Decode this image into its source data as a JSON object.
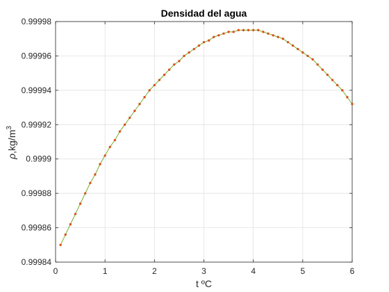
{
  "chart_data": {
    "type": "line",
    "title": "Densidad del agua",
    "xlabel": "t ºC",
    "ylabel": {
      "symbol": "ρ",
      "unit": ",kg/m",
      "exponent": "3"
    },
    "xlim": [
      0,
      6
    ],
    "ylim": [
      0.99984,
      0.99998
    ],
    "xticks": [
      0,
      1,
      2,
      3,
      4,
      5,
      6
    ],
    "xtick_labels": [
      "0",
      "1",
      "2",
      "3",
      "4",
      "5",
      "6"
    ],
    "yticks": [
      0.99984,
      0.99986,
      0.99988,
      0.9999,
      0.99992,
      0.99994,
      0.99996,
      0.99998
    ],
    "ytick_labels": [
      "0.99984",
      "0.99986",
      "0.99988",
      "0.9999",
      "0.99992",
      "0.99994",
      "0.99996",
      "0.99998"
    ],
    "grid": true,
    "series": [
      {
        "line_color": "#77ac30",
        "marker_color": "#d95319",
        "x": [
          0.1,
          0.2,
          0.3,
          0.4,
          0.5,
          0.6,
          0.7,
          0.8,
          0.9,
          1.0,
          1.1,
          1.2,
          1.3,
          1.4,
          1.5,
          1.6,
          1.7,
          1.8,
          1.9,
          2.0,
          2.1,
          2.2,
          2.3,
          2.4,
          2.5,
          2.6,
          2.7,
          2.8,
          2.9,
          3.0,
          3.1,
          3.2,
          3.3,
          3.4,
          3.5,
          3.6,
          3.7,
          3.8,
          3.9,
          4.0,
          4.1,
          4.2,
          4.3,
          4.4,
          4.5,
          4.6,
          4.7,
          4.8,
          4.9,
          5.0,
          5.1,
          5.2,
          5.3,
          5.4,
          5.5,
          5.6,
          5.7,
          5.8,
          5.9,
          6.0
        ],
        "y": [
          0.99985,
          0.999856,
          0.999862,
          0.999868,
          0.999874,
          0.99988,
          0.999886,
          0.999891,
          0.999897,
          0.999902,
          0.999907,
          0.999911,
          0.999916,
          0.99992,
          0.999924,
          0.999928,
          0.999932,
          0.999936,
          0.99994,
          0.999943,
          0.999946,
          0.999949,
          0.999952,
          0.999955,
          0.999957,
          0.99996,
          0.999962,
          0.999964,
          0.999966,
          0.999968,
          0.999969,
          0.999971,
          0.999972,
          0.999973,
          0.999974,
          0.999974,
          0.999975,
          0.999975,
          0.999975,
          0.999975,
          0.999975,
          0.999974,
          0.999973,
          0.999972,
          0.999971,
          0.99997,
          0.999968,
          0.999966,
          0.999964,
          0.999962,
          0.99996,
          0.999958,
          0.999955,
          0.999952,
          0.999949,
          0.999946,
          0.999943,
          0.99994,
          0.999936,
          0.999932
        ]
      }
    ]
  }
}
